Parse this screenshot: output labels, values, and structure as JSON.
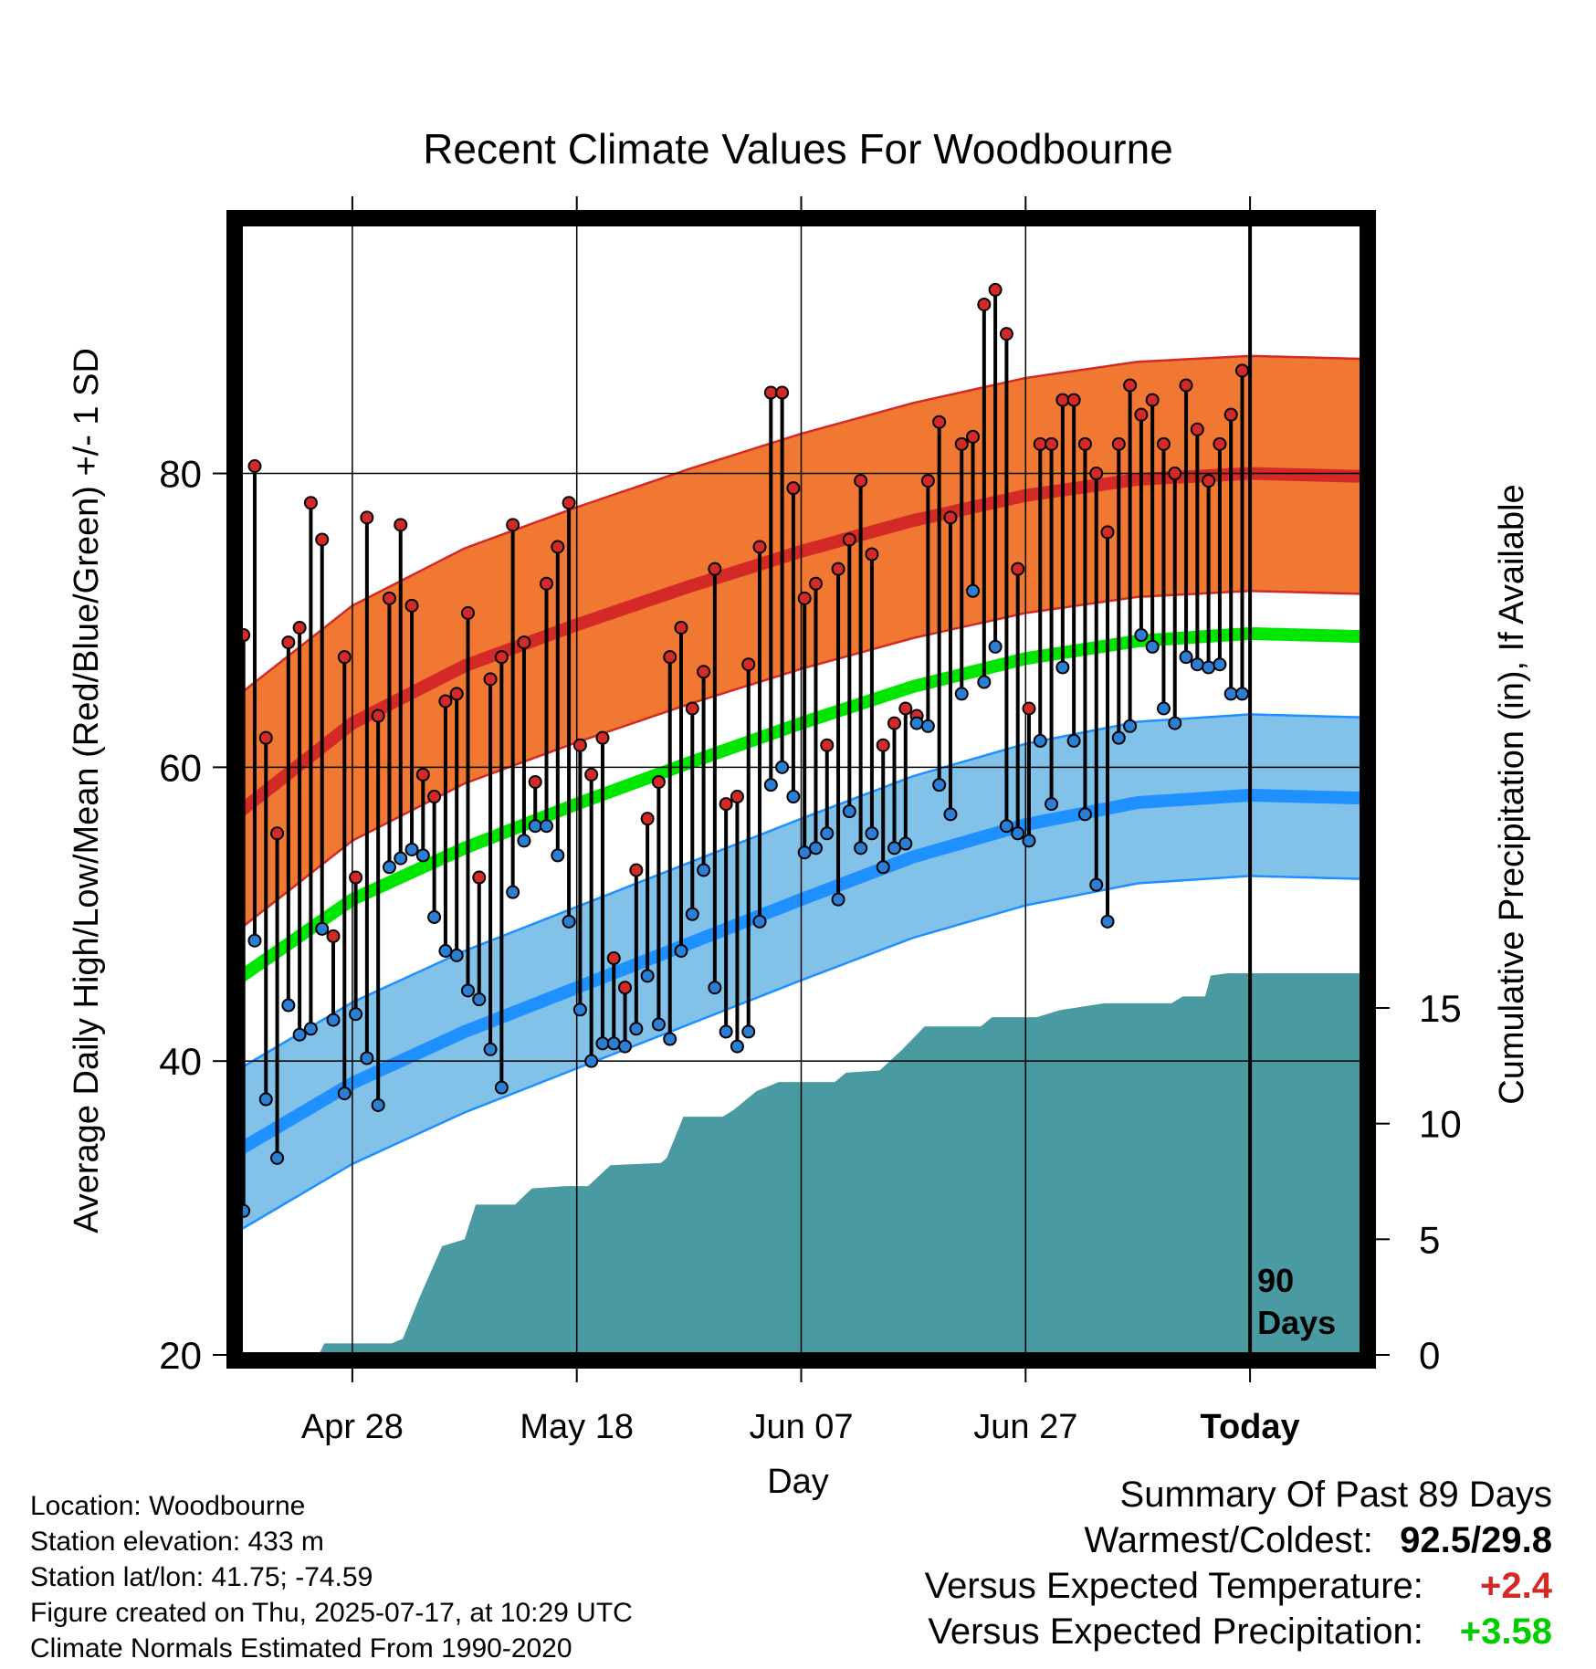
{
  "chart_data": {
    "type": "line",
    "title": "Recent Climate Values For Woodbourne",
    "xlabel": "Day",
    "ylabel": "Average Daily High/Low/Mean (Red/Blue/Green) +/- 1 SD",
    "y2label": "Cumulative Precipitation (in), If Available",
    "ylim": [
      20,
      97
    ],
    "y2lim": [
      0,
      16
    ],
    "yticks": [
      "20",
      "40",
      "60",
      "80"
    ],
    "y2ticks": [
      "0",
      "5",
      "10",
      "15"
    ],
    "xticks": [
      {
        "day": 10,
        "label": "Apr 28"
      },
      {
        "day": 30,
        "label": "May 18"
      },
      {
        "day": 50,
        "label": "Jun 07"
      },
      {
        "day": 70,
        "label": "Jun 27"
      },
      {
        "day": 90,
        "label": "Today"
      }
    ],
    "today_marker": {
      "day": 90,
      "line1": "90",
      "line2": "Days"
    },
    "grid": true,
    "colors": {
      "high": "#d42a27",
      "high_band": "#f07832",
      "low": "#1e90ff",
      "low_band": "#82c1e8",
      "mean": "#00e600",
      "precip": "#4a9aa2",
      "high_dot": "#d42a27",
      "low_dot": "#2a7fd4",
      "plus_temp": "#d42a27",
      "plus_precip": "#00cc00"
    },
    "normals": {
      "days": [
        0,
        10,
        20,
        30,
        40,
        50,
        60,
        70,
        80,
        90,
        100
      ],
      "high": [
        57.0,
        63.0,
        66.9,
        69.7,
        72.3,
        74.7,
        76.8,
        78.5,
        79.6,
        80.0,
        79.8
      ],
      "high_sd": 8.0,
      "low": [
        34.0,
        38.5,
        42.0,
        45.0,
        48.0,
        51.0,
        53.9,
        56.1,
        57.6,
        58.1,
        57.9
      ],
      "low_sd": 5.5,
      "mean": [
        45.7,
        51.0,
        54.5,
        57.5,
        60.3,
        63.0,
        65.5,
        67.4,
        68.6,
        69.1,
        68.9
      ]
    },
    "observed_high": [
      69,
      80.5,
      62,
      55.5,
      68.5,
      69.5,
      78,
      75.5,
      48.5,
      67.5,
      52.5,
      77,
      63.5,
      71.5,
      76.5,
      71,
      59.5,
      58,
      64.5,
      65,
      70.5,
      52.5,
      66,
      67.5,
      76.5,
      68.5,
      59,
      72.5,
      75,
      78,
      61.5,
      59.5,
      62,
      47,
      45,
      53,
      56.5,
      59,
      67.5,
      69.5,
      64,
      66.5,
      73.5,
      57.5,
      58,
      67,
      75,
      85.5,
      85.5,
      79,
      71.5,
      72.5,
      61.5,
      73.5,
      75.5,
      79.5,
      74.5,
      61.5,
      63,
      64,
      63.5,
      79.5,
      83.5,
      77,
      82,
      82.5,
      91.5,
      92.5,
      89.5,
      73.5,
      64,
      82,
      82,
      85,
      85,
      82,
      80,
      76,
      82,
      86,
      84,
      85,
      82,
      80,
      86,
      83,
      79.5,
      82,
      84,
      87
    ],
    "observed_low": [
      29.8,
      48.2,
      37.4,
      33.4,
      43.8,
      41.8,
      42.2,
      49,
      42.8,
      37.8,
      43.2,
      40.2,
      37,
      53.2,
      53.8,
      54.4,
      54,
      49.8,
      47.5,
      47.2,
      44.8,
      44.2,
      40.8,
      38.2,
      51.5,
      55,
      56,
      56,
      54,
      49.5,
      43.5,
      40,
      41.2,
      41.2,
      41,
      42.2,
      45.8,
      42.5,
      41.5,
      47.5,
      50,
      53,
      45,
      42,
      41,
      42,
      49.5,
      58.8,
      60,
      58,
      54.2,
      54.5,
      55.5,
      51,
      57,
      54.5,
      55.5,
      53.2,
      54.5,
      54.8,
      63,
      62.8,
      58.8,
      56.8,
      65,
      72,
      65.8,
      68.2,
      56,
      55.5,
      55,
      61.8,
      57.5,
      66.8,
      61.8,
      56.8,
      52,
      49.5,
      62,
      62.8,
      69,
      68.2,
      64,
      63,
      67.5,
      67,
      66.8,
      67,
      65,
      65
    ],
    "precipitation_cumulative": [
      [
        0,
        0
      ],
      [
        7,
        0
      ],
      [
        7.5,
        0.5
      ],
      [
        13.5,
        0.5
      ],
      [
        14.5,
        0.7
      ],
      [
        16,
        2.5
      ],
      [
        18,
        4.7
      ],
      [
        20,
        5
      ],
      [
        21,
        6.5
      ],
      [
        24.5,
        6.5
      ],
      [
        26,
        7.2
      ],
      [
        29,
        7.3
      ],
      [
        31,
        7.3
      ],
      [
        33,
        8.2
      ],
      [
        37.5,
        8.3
      ],
      [
        38,
        8.5
      ],
      [
        39.5,
        10.3
      ],
      [
        43,
        10.3
      ],
      [
        44,
        10.6
      ],
      [
        46,
        11.4
      ],
      [
        48,
        11.8
      ],
      [
        53,
        11.8
      ],
      [
        54,
        12.2
      ],
      [
        57,
        12.3
      ],
      [
        59,
        13.2
      ],
      [
        61,
        14.2
      ],
      [
        66,
        14.2
      ],
      [
        67,
        14.6
      ],
      [
        71,
        14.6
      ],
      [
        73,
        14.9
      ],
      [
        77,
        15.2
      ],
      [
        83,
        15.2
      ],
      [
        84,
        15.5
      ],
      [
        86,
        15.5
      ],
      [
        86.5,
        16.4
      ],
      [
        88,
        16.5
      ],
      [
        100,
        16.5
      ]
    ]
  },
  "info": {
    "location": "Location: Woodbourne",
    "elevation": "Station elevation: 433 m",
    "latlon": "Station lat/lon: 41.75; -74.59",
    "created": "Figure created on Thu, 2025-07-17, at 10:29 UTC",
    "normals": "Climate Normals Estimated From 1990-2020"
  },
  "summary": {
    "title": "Summary Of Past 89 Days",
    "warm_cold_label": "Warmest/Coldest:",
    "warm_cold_value": "92.5/29.8",
    "temp_label": "Versus Expected Temperature:",
    "temp_value": "+2.4",
    "precip_label": "Versus Expected Precipitation:",
    "precip_value": "+3.58"
  }
}
